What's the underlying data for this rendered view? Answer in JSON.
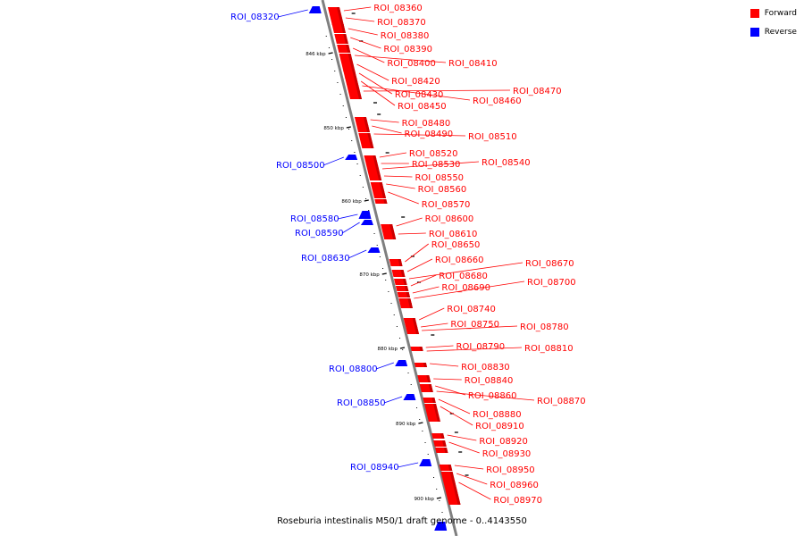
{
  "colors": {
    "forward": "#ff0000",
    "reverse": "#0000ff",
    "axis": "#7f7f7f"
  },
  "legend": {
    "forward": "Forward",
    "reverse": "Reverse"
  },
  "caption": "Roseburia intestinalis M50/1 draft genome - 0..4143550",
  "ticks": [
    "846 kbp",
    "850 kbp",
    "860 kbp",
    "870 kbp",
    "880 kbp",
    "890 kbp",
    "900 kbp"
  ],
  "forward_labels": [
    "ROI_08360",
    "ROI_08370",
    "ROI_08380",
    "ROI_08390",
    "ROI_08400",
    "ROI_08410",
    "ROI_08420",
    "ROI_08430",
    "ROI_08450",
    "ROI_08460",
    "ROI_08470",
    "ROI_08480",
    "ROI_08490",
    "ROI_08510",
    "ROI_08520",
    "ROI_08530",
    "ROI_08540",
    "ROI_08550",
    "ROI_08560",
    "ROI_08570",
    "ROI_08600",
    "ROI_08610",
    "ROI_08650",
    "ROI_08660",
    "ROI_08670",
    "ROI_08680",
    "ROI_08690",
    "ROI_08700",
    "ROI_08740",
    "ROI_08750",
    "ROI_08780",
    "ROI_08790",
    "ROI_08810",
    "ROI_08830",
    "ROI_08840",
    "ROI_08860",
    "ROI_08870",
    "ROI_08880",
    "ROI_08910",
    "ROI_08920",
    "ROI_08930",
    "ROI_08950",
    "ROI_08960",
    "ROI_08970"
  ],
  "reverse_labels": [
    "ROI_08320",
    "ROI_08500",
    "ROI_08580",
    "ROI_08590",
    "ROI_08630",
    "ROI_08800",
    "ROI_08850",
    "ROI_08940"
  ]
}
